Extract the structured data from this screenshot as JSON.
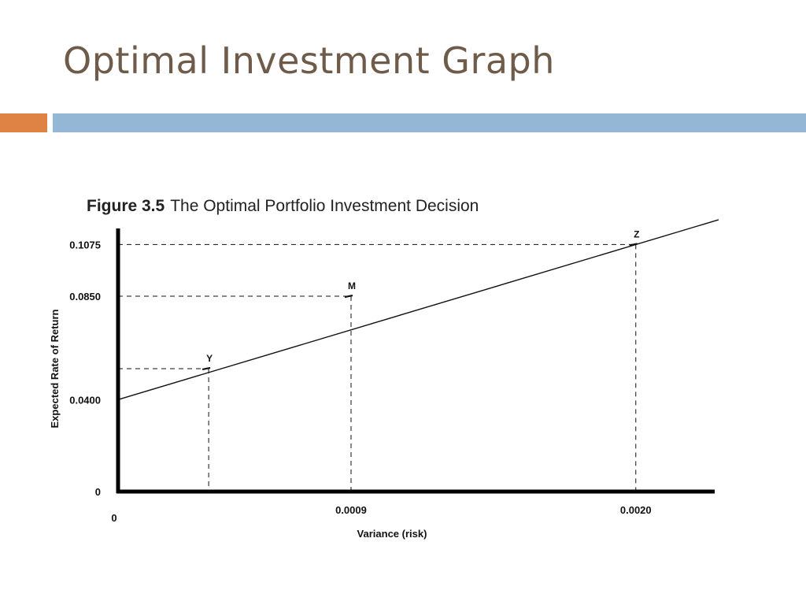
{
  "slide": {
    "title": "Optimal Investment Graph"
  },
  "colors": {
    "title": "#6f5b49",
    "accent_orange": "#de8344",
    "accent_blue": "#93b7d4"
  },
  "chart_data": {
    "type": "line",
    "figure_number": "Figure 3.5",
    "title": "The Optimal Portfolio Investment Decision",
    "xlabel": "Variance (risk)",
    "ylabel": "Expected Rate of Return",
    "x_ticks": [
      {
        "value": 0,
        "label": "0"
      },
      {
        "value": 0.0009,
        "label": "0.0009"
      },
      {
        "value": 0.002,
        "label": "0.0020"
      }
    ],
    "y_ticks": [
      {
        "value": 0,
        "label": "0"
      },
      {
        "value": 0.04,
        "label": "0.0400"
      },
      {
        "value": 0.085,
        "label": "0.0850"
      },
      {
        "value": 0.1075,
        "label": "0.1075"
      }
    ],
    "xlim": [
      0,
      0.00232
    ],
    "ylim": [
      0,
      0.1145
    ],
    "line": {
      "intercept": 0.04,
      "slope": 33.75,
      "x_end": 0.00232
    },
    "points": [
      {
        "label": "Y",
        "x": 0.00035,
        "y": 0.0535
      },
      {
        "label": "M",
        "x": 0.0009,
        "y": 0.085
      },
      {
        "label": "Z",
        "x": 0.002,
        "y": 0.1075
      }
    ],
    "grid": false,
    "legend": "none"
  }
}
